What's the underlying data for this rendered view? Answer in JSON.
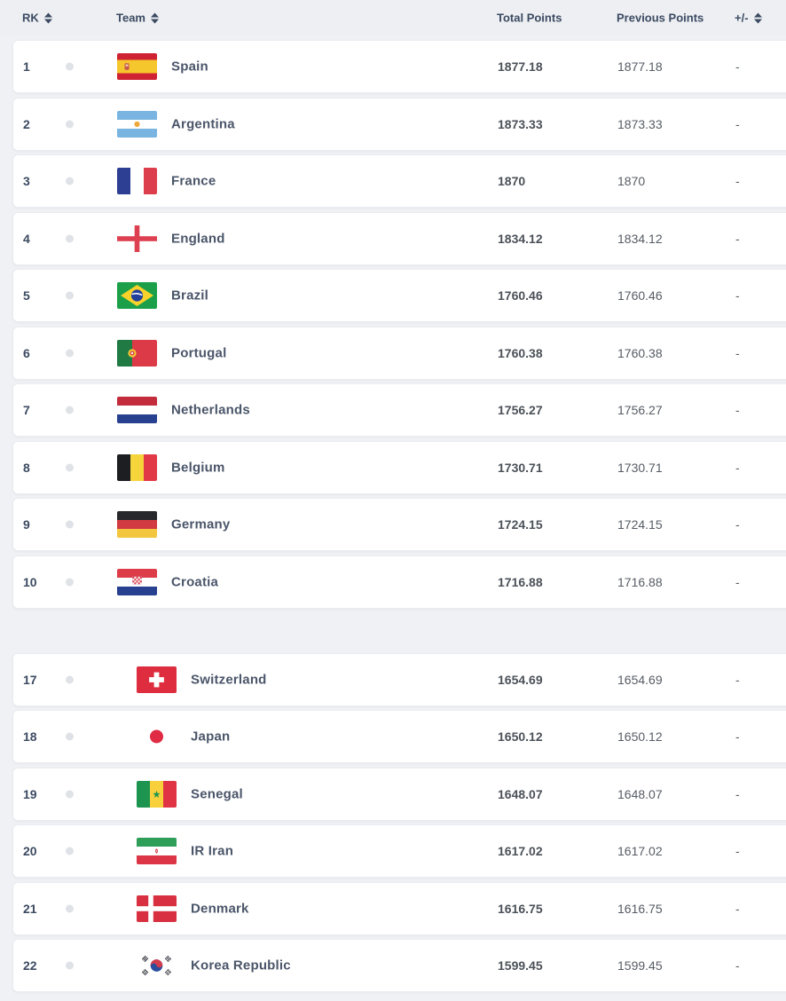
{
  "table": {
    "columns": {
      "rank": "RK",
      "team": "Team",
      "total": "Total Points",
      "previous": "Previous Points",
      "change": "+/-"
    },
    "colors": {
      "header_text": "#3b4a62",
      "team_text": "#4a5569",
      "row_bg": "#ffffff",
      "page_bg": "#eff1f4"
    },
    "sections": [
      {
        "rows": [
          {
            "rank": "1",
            "team": "Spain",
            "flag": "spain",
            "movement": "equal",
            "total": "1877.18",
            "previous": "1877.18",
            "change": "-"
          },
          {
            "rank": "2",
            "team": "Argentina",
            "flag": "argentina",
            "movement": "equal",
            "total": "1873.33",
            "previous": "1873.33",
            "change": "-"
          },
          {
            "rank": "3",
            "team": "France",
            "flag": "france",
            "movement": "equal",
            "total": "1870",
            "previous": "1870",
            "change": "-"
          },
          {
            "rank": "4",
            "team": "England",
            "flag": "england",
            "movement": "equal",
            "total": "1834.12",
            "previous": "1834.12",
            "change": "-"
          },
          {
            "rank": "5",
            "team": "Brazil",
            "flag": "brazil",
            "movement": "equal",
            "total": "1760.46",
            "previous": "1760.46",
            "change": "-"
          },
          {
            "rank": "6",
            "team": "Portugal",
            "flag": "portugal",
            "movement": "equal",
            "total": "1760.38",
            "previous": "1760.38",
            "change": "-"
          },
          {
            "rank": "7",
            "team": "Netherlands",
            "flag": "netherlands",
            "movement": "equal",
            "total": "1756.27",
            "previous": "1756.27",
            "change": "-"
          },
          {
            "rank": "8",
            "team": "Belgium",
            "flag": "belgium",
            "movement": "equal",
            "total": "1730.71",
            "previous": "1730.71",
            "change": "-"
          },
          {
            "rank": "9",
            "team": "Germany",
            "flag": "germany",
            "movement": "equal",
            "total": "1724.15",
            "previous": "1724.15",
            "change": "-"
          },
          {
            "rank": "10",
            "team": "Croatia",
            "flag": "croatia",
            "movement": "equal",
            "total": "1716.88",
            "previous": "1716.88",
            "change": "-"
          }
        ]
      },
      {
        "rows": [
          {
            "rank": "17",
            "team": "Switzerland",
            "flag": "switzerland",
            "movement": "equal",
            "total": "1654.69",
            "previous": "1654.69",
            "change": "-"
          },
          {
            "rank": "18",
            "team": "Japan",
            "flag": "japan",
            "movement": "equal",
            "total": "1650.12",
            "previous": "1650.12",
            "change": "-"
          },
          {
            "rank": "19",
            "team": "Senegal",
            "flag": "senegal",
            "movement": "equal",
            "total": "1648.07",
            "previous": "1648.07",
            "change": "-"
          },
          {
            "rank": "20",
            "team": "IR Iran",
            "flag": "iran",
            "movement": "equal",
            "total": "1617.02",
            "previous": "1617.02",
            "change": "-"
          },
          {
            "rank": "21",
            "team": "Denmark",
            "flag": "denmark",
            "movement": "equal",
            "total": "1616.75",
            "previous": "1616.75",
            "change": "-"
          },
          {
            "rank": "22",
            "team": "Korea Republic",
            "flag": "korea-republic",
            "movement": "equal",
            "total": "1599.45",
            "previous": "1599.45",
            "change": "-"
          }
        ]
      }
    ]
  }
}
